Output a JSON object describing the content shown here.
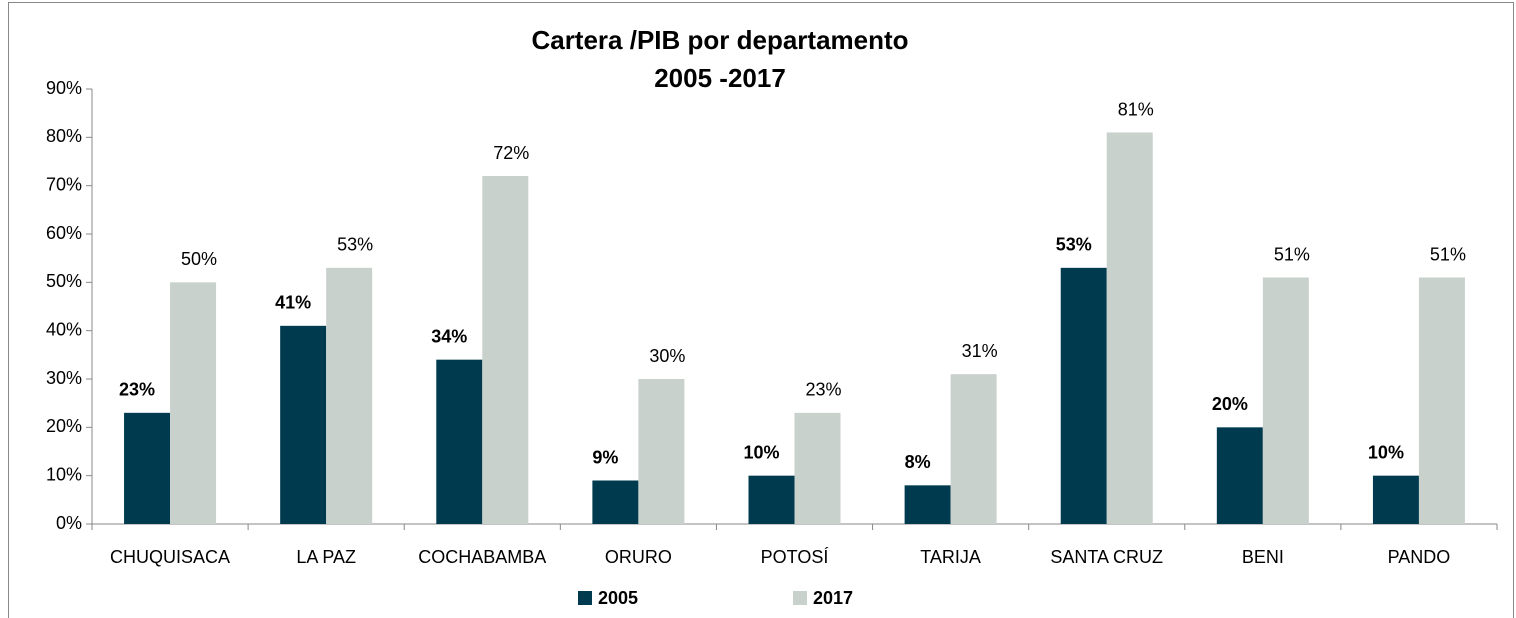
{
  "chart_data": {
    "type": "bar",
    "title": "Cartera /PIB por departamento",
    "subtitle": "2005 -2017",
    "categories": [
      "CHUQUISACA",
      "LA PAZ",
      "COCHABAMBA",
      "ORURO",
      "POTOSÍ",
      "TARIJA",
      "SANTA CRUZ",
      "BENI",
      "PANDO"
    ],
    "series": [
      {
        "name": "2005",
        "color": "#003a4f",
        "values": [
          23,
          41,
          34,
          9,
          10,
          8,
          53,
          20,
          10
        ],
        "value_labels": [
          "23%",
          "41%",
          "34%",
          "9%",
          "10%",
          "8%",
          "53%",
          "20%",
          "10%"
        ]
      },
      {
        "name": "2017",
        "color": "#c8d1cb",
        "values": [
          50,
          53,
          72,
          30,
          23,
          31,
          81,
          51,
          51
        ],
        "value_labels": [
          "50%",
          "53%",
          "72%",
          "30%",
          "23%",
          "31%",
          "81%",
          "51%",
          "51%"
        ]
      }
    ],
    "ylim": [
      0,
      90
    ],
    "yticks": [
      {
        "value": 0,
        "label": "0%"
      },
      {
        "value": 10,
        "label": "10%"
      },
      {
        "value": 20,
        "label": "20%"
      },
      {
        "value": 30,
        "label": "30%"
      },
      {
        "value": 40,
        "label": "40%"
      },
      {
        "value": 50,
        "label": "50%"
      },
      {
        "value": 60,
        "label": "60%"
      },
      {
        "value": 70,
        "label": "70%"
      },
      {
        "value": 80,
        "label": "80%"
      },
      {
        "value": 90,
        "label": "90%"
      }
    ],
    "legend": "bottom"
  }
}
